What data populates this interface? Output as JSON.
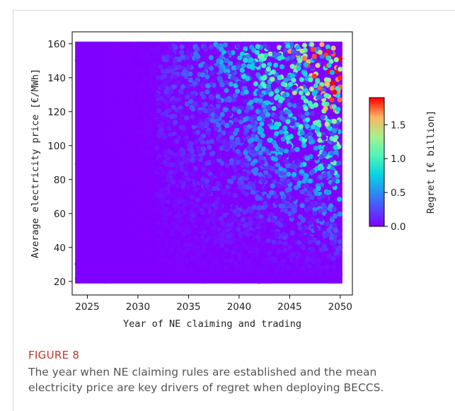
{
  "figure": {
    "label": "FIGURE 8",
    "caption": "The year when NE claiming rules are established and the mean electricity price are key drivers of regret when deploying BECCS."
  },
  "chart_data": {
    "type": "scatter",
    "title": "",
    "xlabel": "Year of NE claiming and trading",
    "ylabel": "Average electricity price [€/MWh]",
    "xlim": [
      2023.5,
      2051.2
    ],
    "ylim": [
      12,
      167
    ],
    "xticks": [
      2025,
      2030,
      2035,
      2040,
      2045,
      2050
    ],
    "yticks": [
      20,
      40,
      60,
      80,
      100,
      120,
      140,
      160
    ],
    "grid": false,
    "x_range_sampled": [
      2024,
      2050
    ],
    "y_range_sampled": [
      20,
      160
    ],
    "colorbar": {
      "label": "Regret [€ billion]",
      "range": [
        0.0,
        1.9
      ],
      "ticks": [
        0.0,
        0.5,
        1.0,
        1.5
      ],
      "colormap": "rainbow"
    },
    "trend": "Regret is near zero for early years and low prices; it increases toward later claiming years (2040–2050) and higher electricity prices (120–160 €/MWh), peaking around 1.5–1.9 € billion in the upper-right corner.",
    "samples_note": "Dense cloud of thousands of simulated scenarios; representative points listed.",
    "points": [
      {
        "x": 2025,
        "y": 30,
        "regret": 0.0
      },
      {
        "x": 2028,
        "y": 90,
        "regret": 0.0
      },
      {
        "x": 2032,
        "y": 140,
        "regret": 0.1
      },
      {
        "x": 2035,
        "y": 80,
        "regret": 0.1
      },
      {
        "x": 2038,
        "y": 150,
        "regret": 0.5
      },
      {
        "x": 2040,
        "y": 120,
        "regret": 0.6
      },
      {
        "x": 2042,
        "y": 100,
        "regret": 0.5
      },
      {
        "x": 2044,
        "y": 140,
        "regret": 0.9
      },
      {
        "x": 2045,
        "y": 60,
        "regret": 0.3
      },
      {
        "x": 2046,
        "y": 150,
        "regret": 1.2
      },
      {
        "x": 2047,
        "y": 125,
        "regret": 1.0
      },
      {
        "x": 2048,
        "y": 155,
        "regret": 1.5
      },
      {
        "x": 2049,
        "y": 110,
        "regret": 0.8
      },
      {
        "x": 2050,
        "y": 145,
        "regret": 1.3
      },
      {
        "x": 2050,
        "y": 40,
        "regret": 0.2
      }
    ]
  }
}
